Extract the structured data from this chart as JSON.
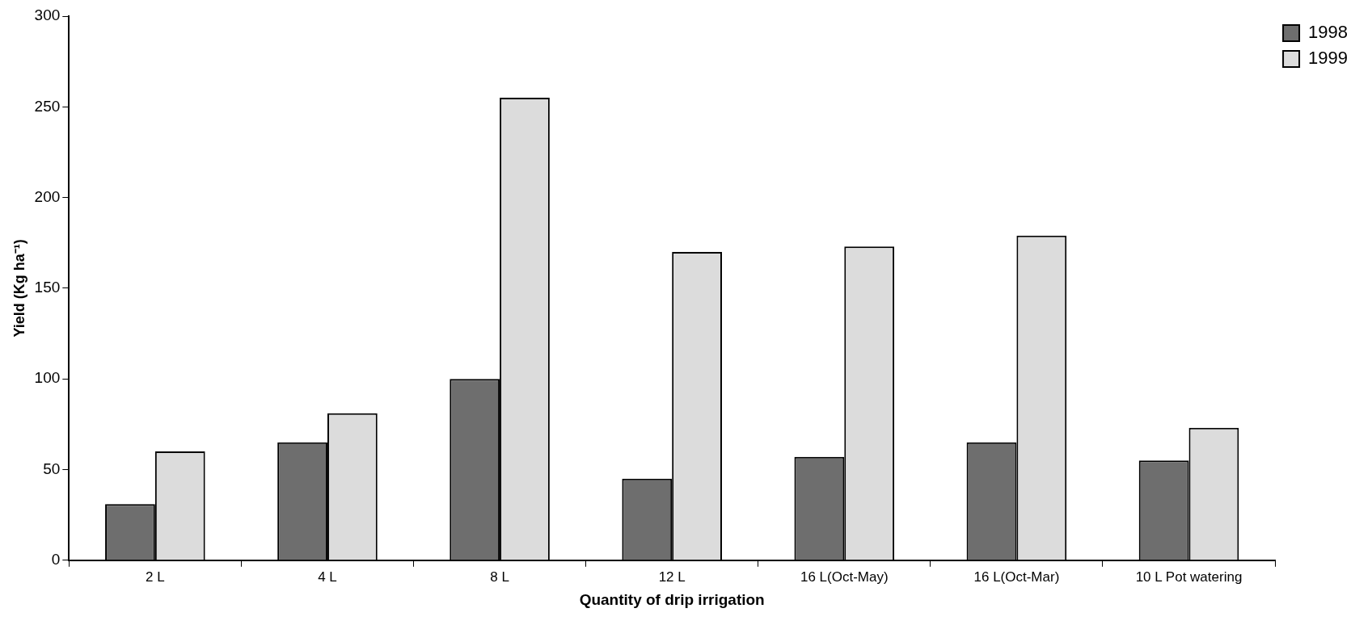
{
  "chart_data": {
    "type": "bar",
    "xlabel": "Quantity of drip irrigation",
    "ylabel": "Yield (Kg ha⁻¹)",
    "categories": [
      "2 L",
      "4 L",
      "8 L",
      "12 L",
      "16 L(Oct-May)",
      "16 L(Oct-Mar)",
      "10 L Pot watering"
    ],
    "series": [
      {
        "name": "1998",
        "color": "#6e6e6e",
        "values": [
          31,
          65,
          100,
          45,
          57,
          65,
          55
        ]
      },
      {
        "name": "1999",
        "color": "#dcdcdc",
        "values": [
          60,
          81,
          255,
          170,
          173,
          179,
          73
        ]
      }
    ],
    "ylim": [
      0,
      300
    ],
    "yticks": [
      0,
      50,
      100,
      150,
      200,
      250,
      300
    ],
    "grid": false,
    "legend": "top right"
  }
}
